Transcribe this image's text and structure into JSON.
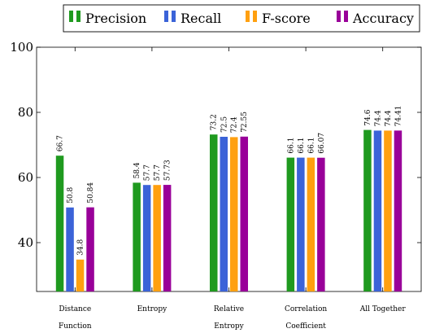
{
  "chart_data": {
    "type": "bar",
    "categories": [
      [
        "Distance",
        "Function"
      ],
      [
        "Entropy"
      ],
      [
        "Relative",
        "Entropy"
      ],
      [
        "Correlation",
        "Coefficient"
      ],
      [
        "All  Together"
      ]
    ],
    "series": [
      {
        "name": "Precision",
        "color": "#1f9a1f",
        "values": [
          66.7,
          58.4,
          73.2,
          66.1,
          74.6
        ],
        "labels": [
          "66.7",
          "58.4",
          "73.2",
          "66.1",
          "74.6"
        ]
      },
      {
        "name": "Recall",
        "color": "#3b63d8",
        "values": [
          50.8,
          57.7,
          72.5,
          66.1,
          74.4
        ],
        "labels": [
          "50.8",
          "57.7",
          "72.5",
          "66.1",
          "74.4"
        ]
      },
      {
        "name": "F-score",
        "color": "#ffa010",
        "values": [
          34.8,
          57.7,
          72.4,
          66.1,
          74.4
        ],
        "labels": [
          "34.8",
          "57.7",
          "72.4",
          "66.1",
          "74.4"
        ]
      },
      {
        "name": "Accuracy",
        "color": "#990099",
        "values": [
          50.84,
          57.73,
          72.55,
          66.07,
          74.41
        ],
        "labels": [
          "50.84",
          "57.73",
          "72.55",
          "66.07",
          "74.41"
        ]
      }
    ],
    "yticks": [
      "40",
      "60",
      "80",
      "100"
    ],
    "ylim": [
      25,
      100
    ],
    "grid": false,
    "legend": "top"
  }
}
